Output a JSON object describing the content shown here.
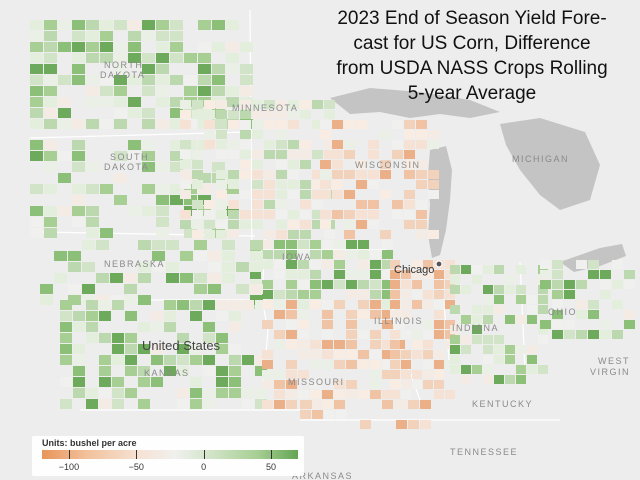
{
  "title": "2023 End of Season Yield Forecast for US Corn, Difference from USDA NASS Crops Rolling 5-year Average",
  "title_lines": [
    "2023 End of Season Yield Fore-",
    "cast for US Corn, Difference",
    "from USDA NASS Crops Rolling",
    "5-year Average"
  ],
  "map_labels": {
    "north_dakota_1": "NORTH",
    "north_dakota_2": "DAKOTA",
    "south_dakota_1": "SOUTH",
    "south_dakota_2": "DAKOTA",
    "minnesota": "MINNESOTA",
    "wisconsin": "WISCONSIN",
    "michigan": "MICHIGAN",
    "nebraska": "NEBRASKA",
    "iowa": "IOWA",
    "illinois": "ILLINOIS",
    "indiana": "INDIANA",
    "ohio": "OHIO",
    "kansas": "KANSAS",
    "missouri": "MISSOURI",
    "kentucky": "KENTUCKY",
    "tennessee": "TENNESSEE",
    "arkansas": "ARKANSAS",
    "west_virginia_1": "WEST",
    "west_virginia_2": "VIRGIN",
    "country": "United States",
    "city": "Chicago"
  },
  "legend": {
    "title": "Units: bushel per acre",
    "ticks": [
      "−100",
      "−50",
      "0",
      "50"
    ],
    "tick_values": [
      -100,
      -50,
      0,
      50
    ],
    "min": -120,
    "max": 70
  },
  "colors": {
    "negative_strong": "#e8955a",
    "negative_light": "#f6e2d4",
    "neutral": "#f0f0ee",
    "positive_light": "#d2e4c8",
    "positive_strong": "#64a554",
    "land": "#ededed",
    "water": "#c4c4c4"
  }
}
